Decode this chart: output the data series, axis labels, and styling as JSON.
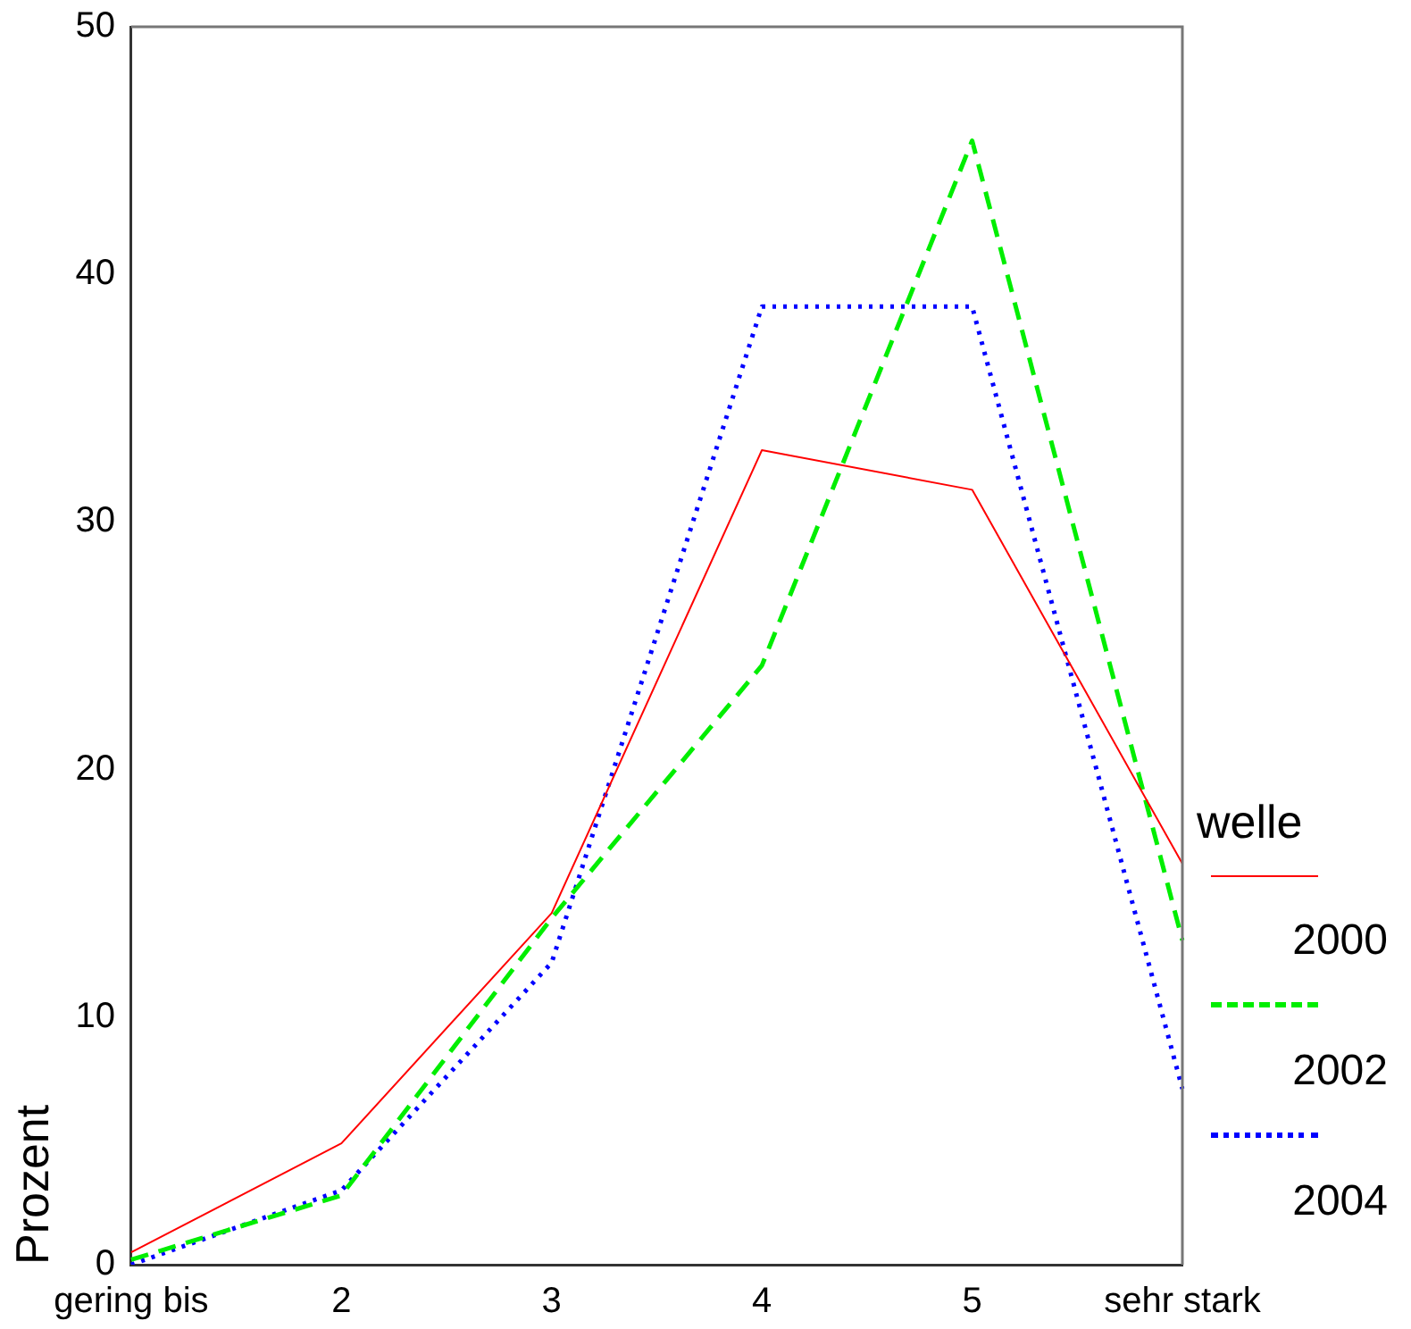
{
  "chart_data": {
    "type": "line",
    "ylabel": "Prozent",
    "legend_title": "welle",
    "legend": "right",
    "grid": false,
    "marker": "none",
    "categories": [
      "gering bis",
      "2",
      "3",
      "4",
      "5",
      "sehr stark"
    ],
    "ylim": [
      0,
      50
    ],
    "yticks": [
      0,
      10,
      20,
      30,
      40,
      50
    ],
    "series": [
      {
        "name": "2000",
        "color": "#ff0000",
        "line_style": "solid",
        "values": [
          0.5,
          4.9,
          14.2,
          32.9,
          31.3,
          16.2
        ]
      },
      {
        "name": "2002",
        "color": "#00ee00",
        "line_style": "dashed",
        "values": [
          0.2,
          2.8,
          14.0,
          24.2,
          45.4,
          13.1
        ]
      },
      {
        "name": "2004",
        "color": "#0000ff",
        "line_style": "dotted",
        "values": [
          0,
          3.0,
          12.2,
          38.7,
          38.7,
          7.1
        ]
      }
    ]
  }
}
